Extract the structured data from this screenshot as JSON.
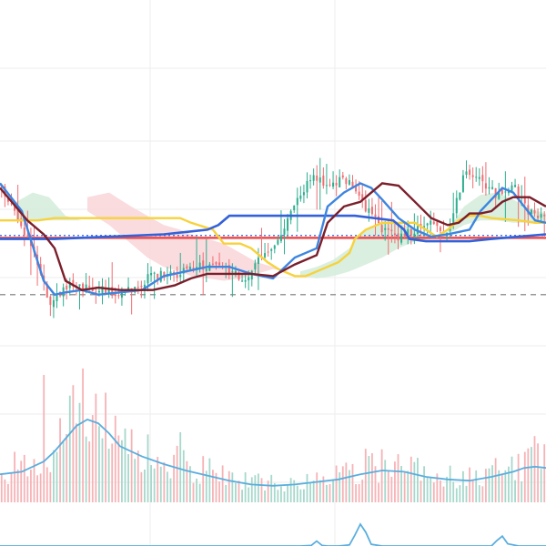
{
  "chart_data": {
    "type": "line",
    "title": "",
    "xlabel": "",
    "ylabel": "",
    "grid": true,
    "legend": "none",
    "x_range": [
      0,
      100
    ],
    "price_range": [
      0,
      100
    ],
    "colors": {
      "up": "#2eae8f",
      "down": "#f06e73",
      "conversion": "#3d85e0",
      "base": "#7a1f2b",
      "span_b": "#f7d23c",
      "long_ma": "#3461d8",
      "red_level": "#ef4a4a",
      "cloud_up": "#d3ecd9",
      "cloud_down": "#f9d5d8",
      "volume_ma": "#5aaede",
      "dashed_level": "#777777",
      "grid": "#eeeeee"
    },
    "price_levels": [
      {
        "name": "",
        "value": 49.5,
        "style": "dotted",
        "color": "#3461d8"
      },
      {
        "name": "",
        "value": 48.5,
        "style": "solid",
        "color": "#ef4a4a"
      },
      {
        "name": "",
        "value": 24.0,
        "style": "dashed",
        "color": "#777777"
      }
    ],
    "close_anchors": {
      "x": [
        0,
        3,
        6,
        9,
        12,
        15,
        18,
        21,
        24,
        27,
        30,
        33,
        36,
        39,
        42,
        45,
        48,
        51,
        54,
        57,
        60,
        63,
        65,
        67,
        70,
        73,
        76,
        79,
        82,
        85,
        88,
        91,
        94,
        97,
        100
      ],
      "y": [
        70,
        58,
        44,
        20,
        28,
        27,
        26,
        25,
        26,
        31,
        33,
        33,
        36,
        37,
        34,
        30,
        42,
        48,
        62,
        75,
        71,
        74,
        69,
        61,
        52,
        48,
        52,
        55,
        52,
        76,
        73,
        67,
        71,
        59,
        57
      ]
    },
    "conversion_line": {
      "x": [
        0,
        4,
        6,
        8,
        10,
        12,
        15,
        18,
        22,
        26,
        30,
        34,
        38,
        42,
        46,
        50,
        54,
        58,
        60,
        63,
        66,
        68,
        70,
        73,
        76,
        79,
        82,
        84,
        86,
        88,
        90,
        92,
        94,
        96,
        98,
        100
      ],
      "y": [
        72,
        60,
        45,
        30,
        24,
        25,
        26,
        24,
        25,
        26,
        32,
        34,
        36,
        36,
        33,
        31,
        40,
        44,
        62,
        68,
        72,
        70,
        65,
        57,
        52,
        49,
        50,
        51,
        52,
        60,
        65,
        70,
        68,
        62,
        56,
        55
      ]
    },
    "base_line": {
      "x": [
        0,
        5,
        8,
        10,
        12,
        15,
        18,
        22,
        25,
        28,
        32,
        35,
        38,
        42,
        46,
        50,
        54,
        58,
        60,
        63,
        66,
        70,
        73,
        76,
        79,
        82,
        84,
        86,
        88,
        90,
        92,
        94,
        97,
        100
      ],
      "y": [
        70,
        56,
        50,
        44,
        30,
        26,
        27,
        26,
        26,
        26,
        28,
        31,
        33,
        33,
        33,
        32,
        37,
        41,
        55,
        62,
        64,
        72,
        71,
        64,
        57,
        54,
        55,
        59,
        59,
        60,
        64,
        66,
        66,
        62
      ]
    },
    "span_b_line": {
      "x": [
        0,
        7,
        10,
        22,
        33,
        35,
        39,
        41,
        44,
        46,
        49,
        51,
        54,
        56,
        58,
        60,
        62,
        64,
        65,
        67,
        70,
        72,
        74,
        76,
        78,
        80,
        82,
        84,
        86,
        88,
        90,
        95,
        98,
        100
      ],
      "y": [
        56,
        56,
        57,
        57,
        57,
        55,
        52,
        46,
        46,
        44,
        38,
        35,
        32,
        32,
        34,
        36,
        38,
        42,
        48,
        52,
        55,
        55,
        55,
        55,
        52,
        49,
        52,
        56,
        58,
        58,
        57,
        56,
        55,
        55
      ]
    },
    "long_ma_line": {
      "x": [
        0,
        10,
        20,
        30,
        38,
        40,
        42,
        45,
        55,
        65,
        72,
        74,
        75,
        78,
        82,
        86,
        90,
        95,
        100
      ],
      "y": [
        48,
        48,
        49,
        50,
        52,
        54,
        58,
        58,
        58,
        58,
        56,
        52,
        48,
        47,
        47,
        47,
        48,
        49,
        50
      ]
    },
    "cloud_segments": [
      {
        "kind": "up",
        "x": [
          3,
          6,
          9,
          12,
          15
        ],
        "upper": [
          64,
          68,
          66,
          58,
          56
        ],
        "lower": [
          56,
          56,
          56,
          56,
          56
        ]
      },
      {
        "kind": "down",
        "x": [
          16,
          20,
          24,
          27,
          30,
          33,
          35,
          38,
          41,
          44,
          47,
          50,
          53
        ],
        "upper": [
          66,
          68,
          62,
          58,
          54,
          52,
          50,
          48,
          46,
          42,
          38,
          36,
          34
        ],
        "lower": [
          60,
          54,
          46,
          40,
          36,
          34,
          32,
          31,
          30,
          31,
          33,
          35,
          34
        ]
      },
      {
        "kind": "up",
        "x": [
          55,
          58,
          61,
          64,
          66,
          68,
          70,
          73,
          76,
          79,
          82
        ],
        "upper": [
          34,
          36,
          39,
          44,
          50,
          53,
          55,
          55,
          52,
          49,
          51
        ],
        "lower": [
          32,
          31,
          32,
          34,
          36,
          38,
          40,
          44,
          47,
          48,
          49
        ]
      },
      {
        "kind": "up",
        "x": [
          82,
          85,
          88,
          91,
          94,
          97,
          100
        ],
        "upper": [
          52,
          62,
          67,
          68,
          65,
          61,
          59
        ],
        "lower": [
          50,
          54,
          56,
          56,
          55,
          55,
          55
        ]
      }
    ],
    "volume_ma": {
      "x": [
        0,
        4,
        8,
        10,
        12,
        14,
        16,
        18,
        20,
        22,
        26,
        30,
        34,
        38,
        42,
        46,
        50,
        54,
        58,
        62,
        66,
        70,
        74,
        78,
        82,
        86,
        90,
        94,
        96,
        98,
        100
      ],
      "y": [
        22,
        24,
        32,
        40,
        50,
        60,
        65,
        62,
        54,
        44,
        36,
        30,
        25,
        21,
        17,
        14,
        13,
        14,
        16,
        18,
        22,
        25,
        24,
        20,
        18,
        17,
        20,
        24,
        27,
        28,
        27
      ]
    },
    "volume_spikes": [
      [
        8,
        100
      ],
      [
        11,
        66
      ],
      [
        21,
        68
      ],
      [
        33,
        55
      ],
      [
        67,
        42
      ],
      [
        95,
        38
      ],
      [
        98,
        52
      ]
    ],
    "oscillator": {
      "x": [
        0,
        20,
        40,
        55,
        57,
        58,
        59,
        60,
        62,
        64,
        65,
        66,
        67,
        68,
        70,
        80,
        90,
        91,
        92,
        93,
        95,
        100
      ],
      "y": [
        0,
        0,
        0,
        0,
        2,
        18,
        2,
        0,
        0,
        4,
        40,
        80,
        50,
        6,
        0,
        0,
        0,
        20,
        36,
        8,
        0,
        0
      ]
    }
  }
}
